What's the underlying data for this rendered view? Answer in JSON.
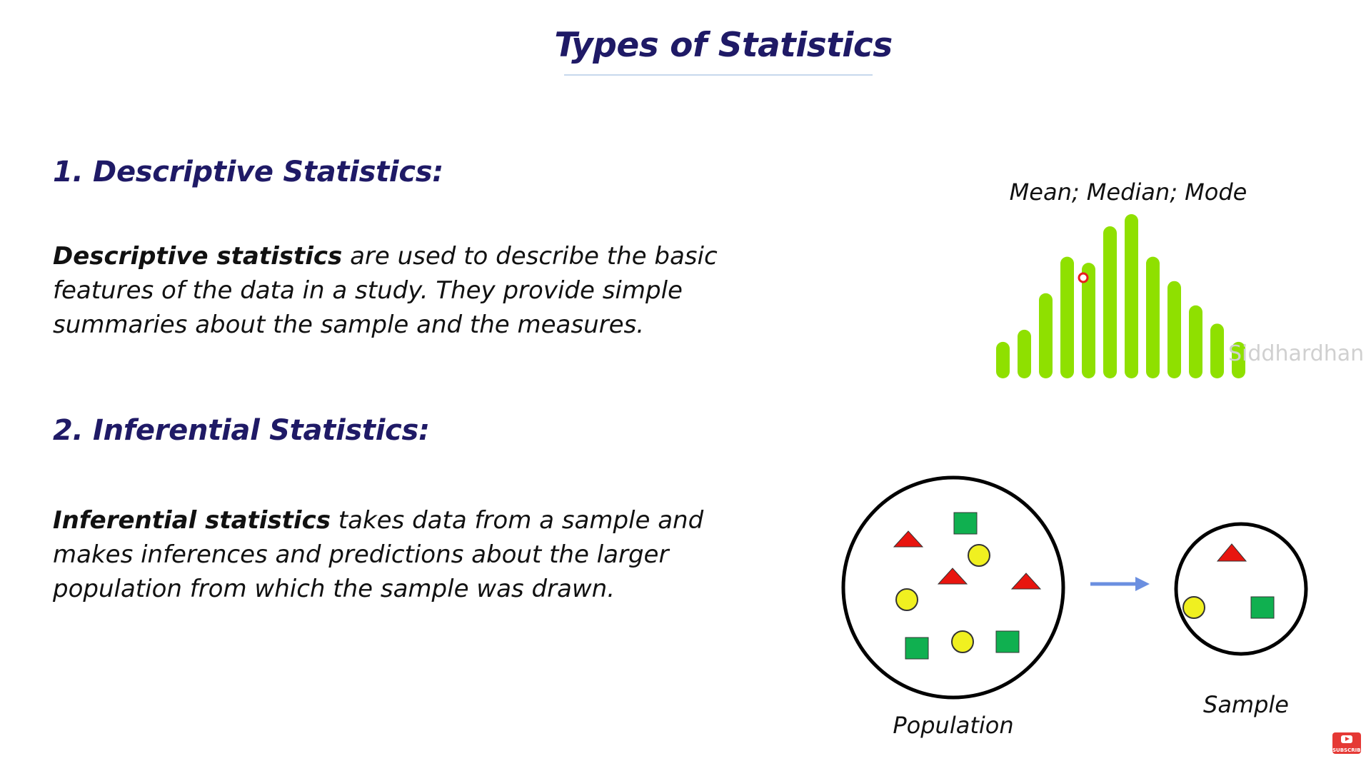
{
  "slide": {
    "title": "Types of Statistics",
    "section1": {
      "heading": "1. Descriptive Statistics:",
      "bold_term": "Descriptive statistics",
      "text": " are used to describe the basic features of the data in a study. They provide simple summaries about the sample and the measures."
    },
    "section2": {
      "heading": "2. Inferential Statistics:",
      "bold_term": "Inferential statistics",
      "text": " takes data from a sample and makes inferences and predictions about the larger population from which the sample was drawn."
    }
  },
  "chart": {
    "label": "Mean; Median; Mode",
    "bar_color": "#8fe000",
    "bar_heights": [
      3,
      4,
      7,
      10,
      9.5,
      12.5,
      13.5,
      10,
      8,
      6,
      4.5,
      3
    ]
  },
  "watermark": "Siddhardhan",
  "diagram": {
    "population_label": "Population",
    "sample_label": "Sample",
    "colors": {
      "triangle": "#e8150f",
      "square": "#10b050",
      "circle": "#f0f020",
      "arrow": "#6b8fe0"
    }
  },
  "subscribe_label": "SUBSCRIBE"
}
